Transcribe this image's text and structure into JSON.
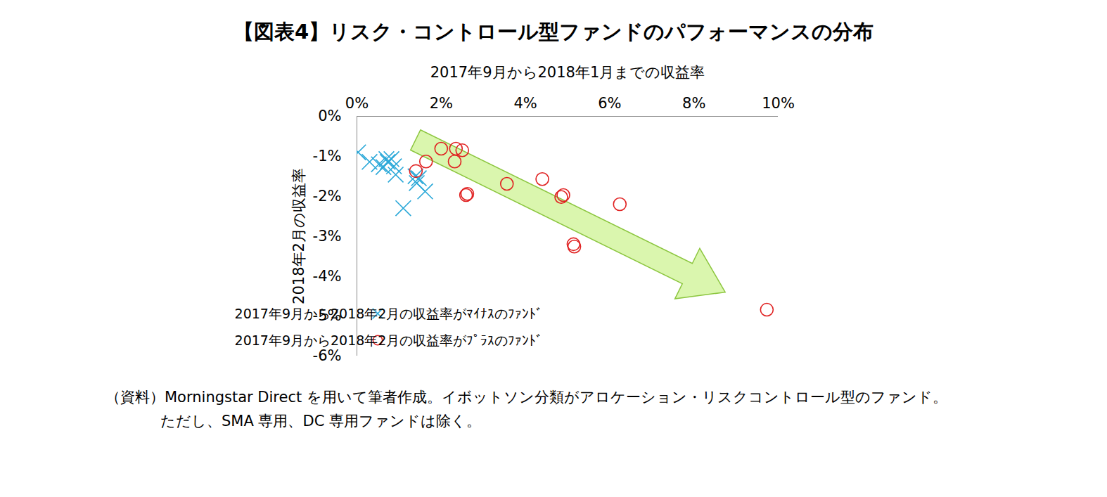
{
  "chart_data": {
    "type": "scatter",
    "title": "【図表4】リスク・コントロール型ファンドのパフォーマンスの分布",
    "x_label": "2017年9月から2018年1月までの収益率",
    "y_label": "2018年2月の収益率",
    "xlim": [
      0,
      10
    ],
    "xticks": [
      {
        "value": 0,
        "label": "0%"
      },
      {
        "value": 2,
        "label": "2%"
      },
      {
        "value": 4,
        "label": "4%"
      },
      {
        "value": 6,
        "label": "6%"
      },
      {
        "value": 8,
        "label": "8%"
      },
      {
        "value": 10,
        "label": "10%"
      }
    ],
    "ylim": [
      -6,
      0
    ],
    "yticks": [
      {
        "value": 0,
        "label": "0%"
      },
      {
        "value": -1,
        "label": "-1%"
      },
      {
        "value": -2,
        "label": "-2%"
      },
      {
        "value": -3,
        "label": "-3%"
      },
      {
        "value": -4,
        "label": "-4%"
      },
      {
        "value": -5,
        "label": "-5%"
      },
      {
        "value": -6,
        "label": "-6%"
      }
    ],
    "grid": false,
    "legend": "lower left",
    "series": [
      {
        "name": "2017年9月から2018年2月の収益率がﾏｲﾅｽのﾌｧﾝﾄﾞ",
        "color": "#2aa8d8",
        "marker": "x",
        "x": [
          0.03,
          0.3,
          0.52,
          0.63,
          0.7,
          0.73,
          0.82,
          0.88,
          0.92,
          1.1,
          1.39,
          1.42,
          1.47,
          1.62
        ],
        "values": [
          -0.9,
          -1.14,
          -1.2,
          -1.27,
          -1.07,
          -1.14,
          -1.07,
          -1.25,
          -1.46,
          -2.3,
          -1.5,
          -1.67,
          -1.55,
          -1.88
        ]
      },
      {
        "name": "2017年9月から2018年2月の収益率がﾌﾟﾗｽのﾌｧﾝﾄﾞ",
        "color": "#e02020",
        "marker": "circle",
        "x": [
          1.4,
          1.64,
          2.0,
          2.35,
          2.5,
          2.32,
          2.59,
          2.62,
          3.56,
          4.4,
          4.85,
          4.9,
          5.14,
          5.16,
          6.24,
          9.73
        ],
        "values": [
          -1.37,
          -1.13,
          -0.81,
          -0.81,
          -0.85,
          -1.13,
          -1.97,
          -1.94,
          -1.69,
          -1.57,
          -2.02,
          -1.97,
          -3.2,
          -3.26,
          -2.2,
          -4.84
        ]
      }
    ],
    "caption": [
      "（資料）Morningstar Direct を用いて筆者作成。イボットソン分類がアロケーション・リスクコントロール型のファンド。",
      "ただし、SMA 専用、DC 専用ファンドは除く。"
    ]
  }
}
